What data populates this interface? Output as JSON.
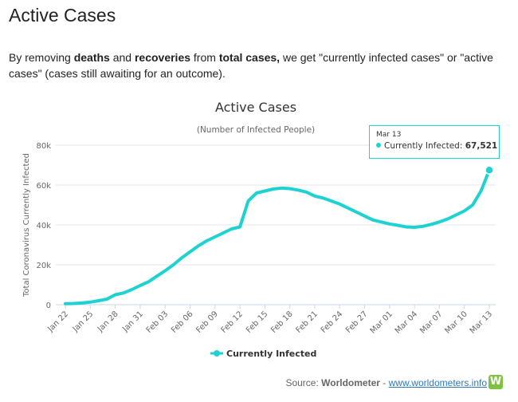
{
  "page": {
    "heading": "Active Cases",
    "intro_parts": {
      "p1": "By removing ",
      "b1": "deaths",
      "p2": " and ",
      "b2": "recoveries",
      "p3": " from ",
      "b3": "total cases,",
      "p4": " we get \"currently infected cases\" or \"active cases\" (cases still awaiting for an outcome)."
    }
  },
  "tooltip": {
    "date": "Mar 13",
    "series": "Currently Infected:",
    "value": "67,521"
  },
  "source": {
    "label": "Source:",
    "name": "Worldometer",
    "sep": " - ",
    "url": "www.worldometers.info",
    "logo_letter": "W"
  },
  "colors": {
    "series": "#1fd2d2",
    "grid": "#e6e6e6",
    "axis_text": "#666666"
  },
  "chart_data": {
    "type": "line",
    "title": "Active Cases",
    "subtitle": "(Number of Infected People)",
    "ylabel": "Total Coronavirus Currently Infected",
    "xlabel": "",
    "ylim": [
      0,
      80000
    ],
    "y_ticks": [
      0,
      20000,
      40000,
      60000,
      80000
    ],
    "y_tick_labels": [
      "0",
      "20k",
      "40k",
      "60k",
      "80k"
    ],
    "x_tick_labels": [
      "Jan 22",
      "Jan 25",
      "Jan 28",
      "Jan 31",
      "Feb 03",
      "Feb 06",
      "Feb 09",
      "Feb 12",
      "Feb 15",
      "Feb 18",
      "Feb 21",
      "Feb 24",
      "Feb 27",
      "Mar 01",
      "Mar 04",
      "Mar 07",
      "Mar 10",
      "Mar 13"
    ],
    "grid": true,
    "legend": "bottom-center",
    "series": [
      {
        "name": "Currently Infected",
        "values": [
          [
            "Jan 22",
            500
          ],
          [
            "Jan 23",
            600
          ],
          [
            "Jan 24",
            850
          ],
          [
            "Jan 25",
            1300
          ],
          [
            "Jan 26",
            2000
          ],
          [
            "Jan 27",
            2800
          ],
          [
            "Jan 28",
            5000
          ],
          [
            "Jan 29",
            5900
          ],
          [
            "Jan 30",
            7600
          ],
          [
            "Jan 31",
            9600
          ],
          [
            "Feb 01",
            11500
          ],
          [
            "Feb 02",
            14300
          ],
          [
            "Feb 03",
            17000
          ],
          [
            "Feb 04",
            20000
          ],
          [
            "Feb 05",
            23500
          ],
          [
            "Feb 06",
            26500
          ],
          [
            "Feb 07",
            29500
          ],
          [
            "Feb 08",
            32000
          ],
          [
            "Feb 09",
            34000
          ],
          [
            "Feb 10",
            36000
          ],
          [
            "Feb 11",
            38000
          ],
          [
            "Feb 12",
            39000
          ],
          [
            "Feb 13",
            52000
          ],
          [
            "Feb 14",
            56000
          ],
          [
            "Feb 15",
            57000
          ],
          [
            "Feb 16",
            58000
          ],
          [
            "Feb 17",
            58500
          ],
          [
            "Feb 18",
            58200
          ],
          [
            "Feb 19",
            57500
          ],
          [
            "Feb 20",
            56500
          ],
          [
            "Feb 21",
            54500
          ],
          [
            "Feb 22",
            53500
          ],
          [
            "Feb 23",
            52000
          ],
          [
            "Feb 24",
            50500
          ],
          [
            "Feb 25",
            48500
          ],
          [
            "Feb 26",
            46500
          ],
          [
            "Feb 27",
            44500
          ],
          [
            "Feb 28",
            42500
          ],
          [
            "Feb 29",
            41500
          ],
          [
            "Mar 01",
            40500
          ],
          [
            "Mar 02",
            39800
          ],
          [
            "Mar 03",
            39000
          ],
          [
            "Mar 04",
            38800
          ],
          [
            "Mar 05",
            39300
          ],
          [
            "Mar 06",
            40300
          ],
          [
            "Mar 07",
            41500
          ],
          [
            "Mar 08",
            43000
          ],
          [
            "Mar 09",
            45000
          ],
          [
            "Mar 10",
            47000
          ],
          [
            "Mar 11",
            50000
          ],
          [
            "Mar 12",
            57000
          ],
          [
            "Mar 13",
            67521
          ]
        ]
      }
    ]
  }
}
